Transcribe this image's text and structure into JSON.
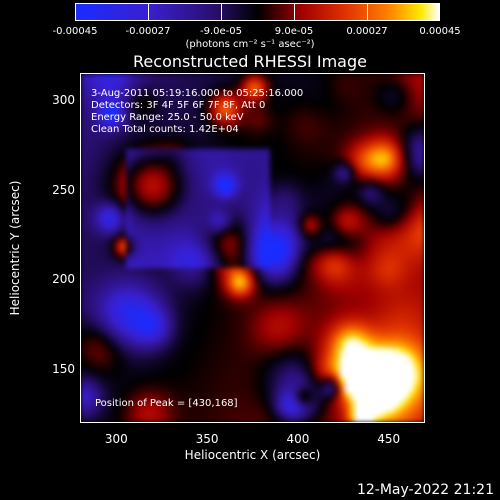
{
  "chart_data": {
    "type": "heatmap",
    "title": "Reconstructed RHESSI Image",
    "xlabel": "Heliocentric X (arcsec)",
    "ylabel": "Heliocentric Y (arcsec)",
    "xlim": [
      280,
      470
    ],
    "ylim": [
      120,
      315
    ],
    "xticks": [
      "300",
      "350",
      "400",
      "450"
    ],
    "yticks": [
      "150",
      "200",
      "250",
      "300"
    ],
    "colorbar": {
      "ticks": [
        "-0.00045",
        "-0.00027",
        "-9.0e-05",
        "9.0e-05",
        "0.00027",
        "0.00045"
      ],
      "range": [
        -0.00045,
        0.00045
      ],
      "units": "(photons cm⁻² s⁻¹ asec⁻²)"
    },
    "annotations": [
      "3-Aug-2011 05:19:16.000 to 05:25:16.000",
      "Detectors: 3F 4F 5F 6F 7F 8F, Att 0",
      "Energy Range: 25.0 - 50.0 keV",
      "Clean    Total counts: 1.42E+04"
    ],
    "peak_label": "Position of Peak = [430,168]",
    "peak": [
      430,
      168
    ],
    "grid": false
  },
  "timestamp": "12-May-2022 21:21"
}
